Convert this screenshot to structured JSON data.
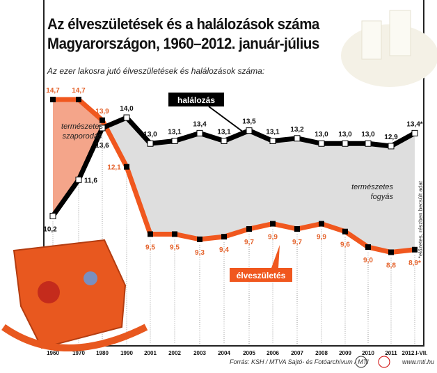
{
  "chart_data": {
    "type": "line",
    "title": "Az élveszületések és a halálozások száma Magyarországon, 1960–2012. január-július",
    "subtitle": "Az ezer lakosra jutó élveszületések és halálozások száma:",
    "categories": [
      "1960",
      "1970",
      "1980",
      "1990",
      "2001",
      "2002",
      "2003",
      "2004",
      "2005",
      "2006",
      "2007",
      "2008",
      "2009",
      "2010",
      "2011",
      "2012.I-VII."
    ],
    "series": [
      {
        "name": "halálozás",
        "color": "#000000",
        "values": [
          10.2,
          11.6,
          13.6,
          14.0,
          13.0,
          13.1,
          13.4,
          13.1,
          13.5,
          13.1,
          13.2,
          13.0,
          13.0,
          13.0,
          12.9,
          13.4
        ],
        "labels": [
          "10,2",
          "11,6",
          "13,6",
          "14,0",
          "13,0",
          "13,1",
          "13,4",
          "13,1",
          "13,5",
          "13,1",
          "13,2",
          "13,0",
          "13,0",
          "13,0",
          "12,9",
          "13,4*"
        ]
      },
      {
        "name": "élveszületés",
        "color": "#f0571e",
        "values": [
          14.7,
          14.7,
          13.9,
          12.1,
          9.5,
          9.5,
          9.3,
          9.4,
          9.7,
          9.9,
          9.7,
          9.9,
          9.6,
          9.0,
          8.8,
          8.9
        ],
        "labels": [
          "14,7",
          "14,7",
          "13,9",
          "12,1",
          "9,5",
          "9,5",
          "9,3",
          "9,4",
          "9,7",
          "9,9",
          "9,7",
          "9,9",
          "9,6",
          "9,0",
          "8,8",
          "8,9*"
        ]
      }
    ],
    "annotations": {
      "growth": [
        "természetes",
        "szaporodás"
      ],
      "decline": [
        "természetes",
        "fogyás"
      ]
    },
    "note": "*előzetes, részben becsült adat"
  },
  "title_line1": "Az élveszületések és a halálozások száma",
  "title_line2": "Magyarországon, 1960–2012. január-július",
  "source": "Forrás: KSH / MTVA Sajtó- és Fotóarchívum / MTI",
  "website": "www.mti.hu"
}
